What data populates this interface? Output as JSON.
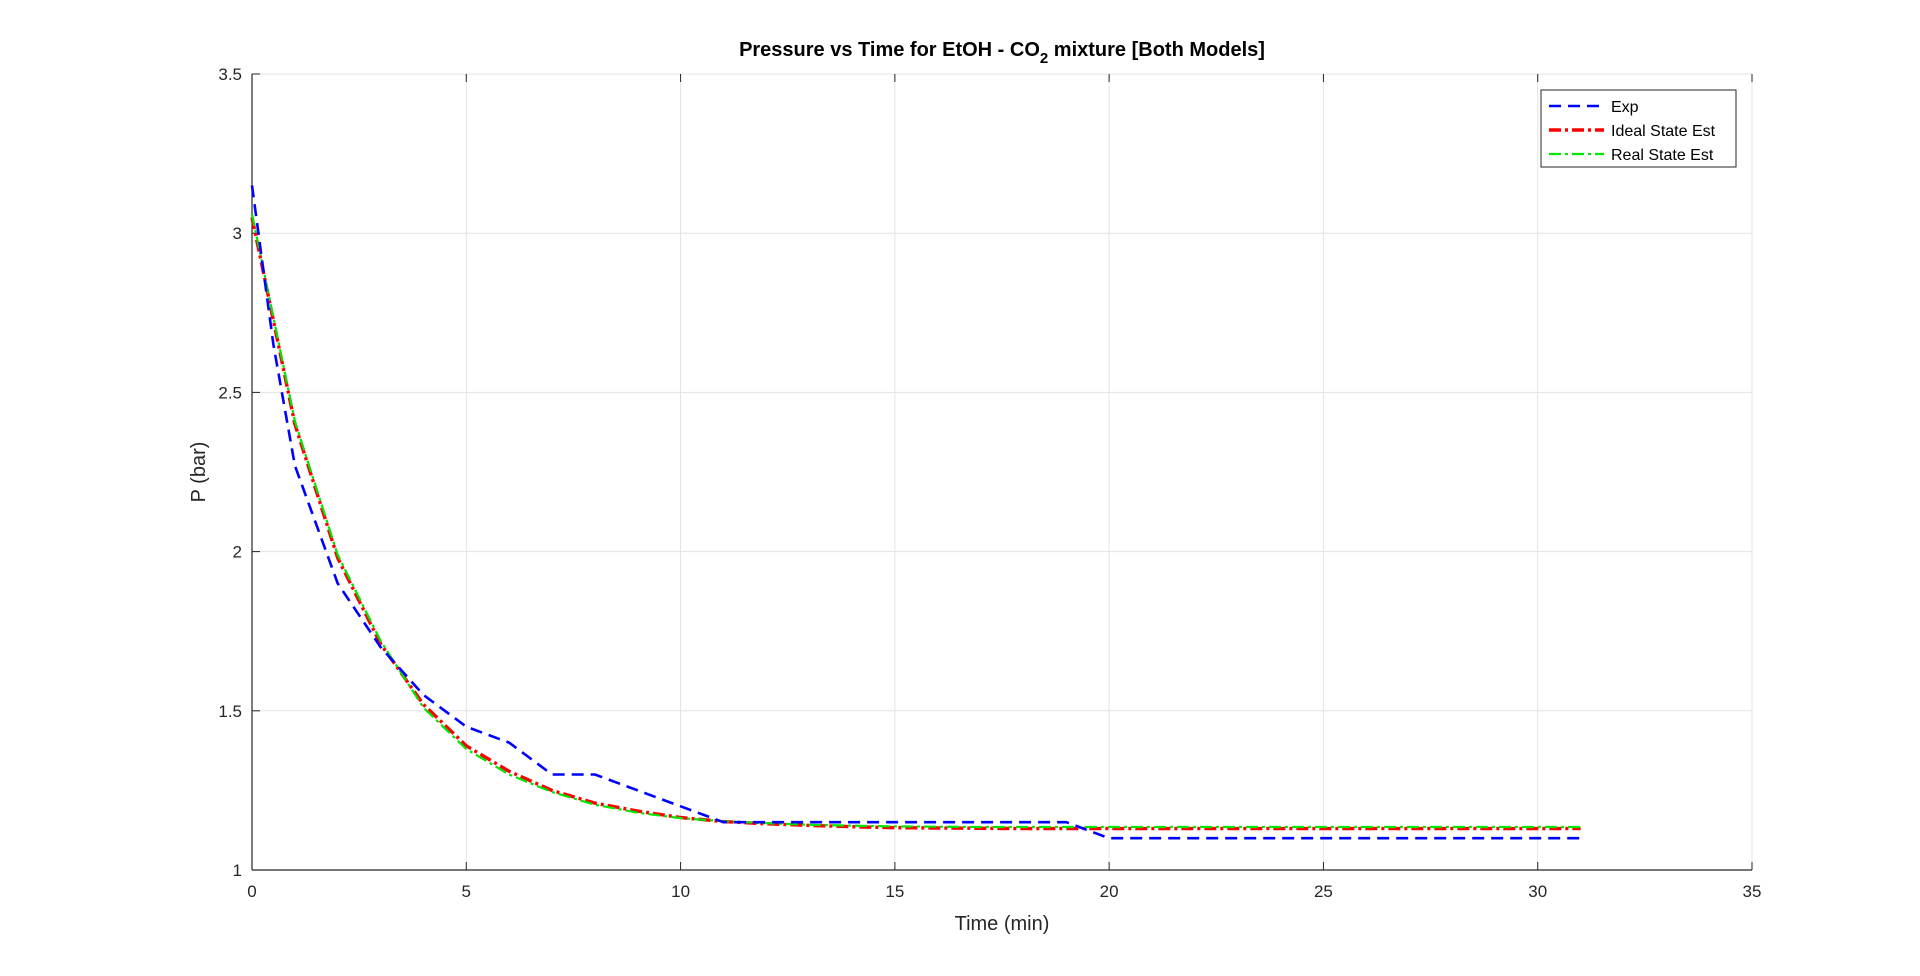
{
  "chart_data": {
    "type": "line",
    "title_prefix": "Pressure vs Time for EtOH - CO",
    "title_subscript": "2",
    "title_suffix": " mixture [Both Models]",
    "xlabel": "Time (min)",
    "ylabel": "P (bar)",
    "xlim": [
      0,
      35
    ],
    "ylim": [
      1,
      3.5
    ],
    "xticks": [
      "0",
      "5",
      "10",
      "15",
      "20",
      "25",
      "30",
      "35"
    ],
    "yticks": [
      "1",
      "1.5",
      "2",
      "2.5",
      "3",
      "3.5"
    ],
    "grid": true,
    "legend_position": "top-right",
    "series": [
      {
        "name": "Exp",
        "color": "#0000ff",
        "style": "dashed",
        "x": [
          0,
          0.5,
          1,
          2,
          3,
          4,
          5,
          6,
          7,
          8,
          9,
          10,
          11,
          12,
          13,
          14,
          15,
          16,
          17,
          18,
          19,
          20,
          21,
          22,
          23,
          24,
          25,
          26,
          27,
          28,
          29,
          30,
          31
        ],
        "y": [
          3.15,
          2.65,
          2.27,
          1.9,
          1.7,
          1.55,
          1.45,
          1.4,
          1.3,
          1.3,
          1.25,
          1.2,
          1.15,
          1.15,
          1.15,
          1.15,
          1.15,
          1.15,
          1.15,
          1.15,
          1.15,
          1.1,
          1.1,
          1.1,
          1.1,
          1.1,
          1.1,
          1.1,
          1.1,
          1.1,
          1.1,
          1.1,
          1.1
        ]
      },
      {
        "name": "Ideal State Est",
        "color": "#ff0000",
        "style": "dashdot",
        "x": [
          0,
          1,
          2,
          3,
          4,
          5,
          6,
          7,
          8,
          9,
          10,
          11,
          12,
          13,
          14,
          15,
          16,
          17,
          18,
          19,
          20,
          21,
          22,
          23,
          24,
          25,
          26,
          27,
          28,
          29,
          30,
          31
        ],
        "y": [
          3.05,
          2.4,
          1.98,
          1.71,
          1.52,
          1.39,
          1.31,
          1.25,
          1.21,
          1.185,
          1.165,
          1.152,
          1.145,
          1.14,
          1.136,
          1.133,
          1.132,
          1.131,
          1.13,
          1.13,
          1.13,
          1.13,
          1.13,
          1.13,
          1.13,
          1.13,
          1.13,
          1.13,
          1.13,
          1.13,
          1.13,
          1.13
        ]
      },
      {
        "name": "Real State Est",
        "color": "#00e600",
        "style": "dashdot",
        "x": [
          0,
          1,
          2,
          3,
          4,
          5,
          6,
          7,
          8,
          9,
          10,
          11,
          12,
          13,
          14,
          15,
          16,
          17,
          18,
          19,
          20,
          21,
          22,
          23,
          24,
          25,
          26,
          27,
          28,
          29,
          30,
          31
        ],
        "y": [
          3.06,
          2.41,
          1.99,
          1.72,
          1.51,
          1.38,
          1.3,
          1.245,
          1.205,
          1.18,
          1.163,
          1.153,
          1.147,
          1.142,
          1.139,
          1.137,
          1.136,
          1.135,
          1.135,
          1.135,
          1.135,
          1.135,
          1.135,
          1.135,
          1.135,
          1.135,
          1.135,
          1.135,
          1.135,
          1.135,
          1.135,
          1.135
        ]
      }
    ]
  }
}
